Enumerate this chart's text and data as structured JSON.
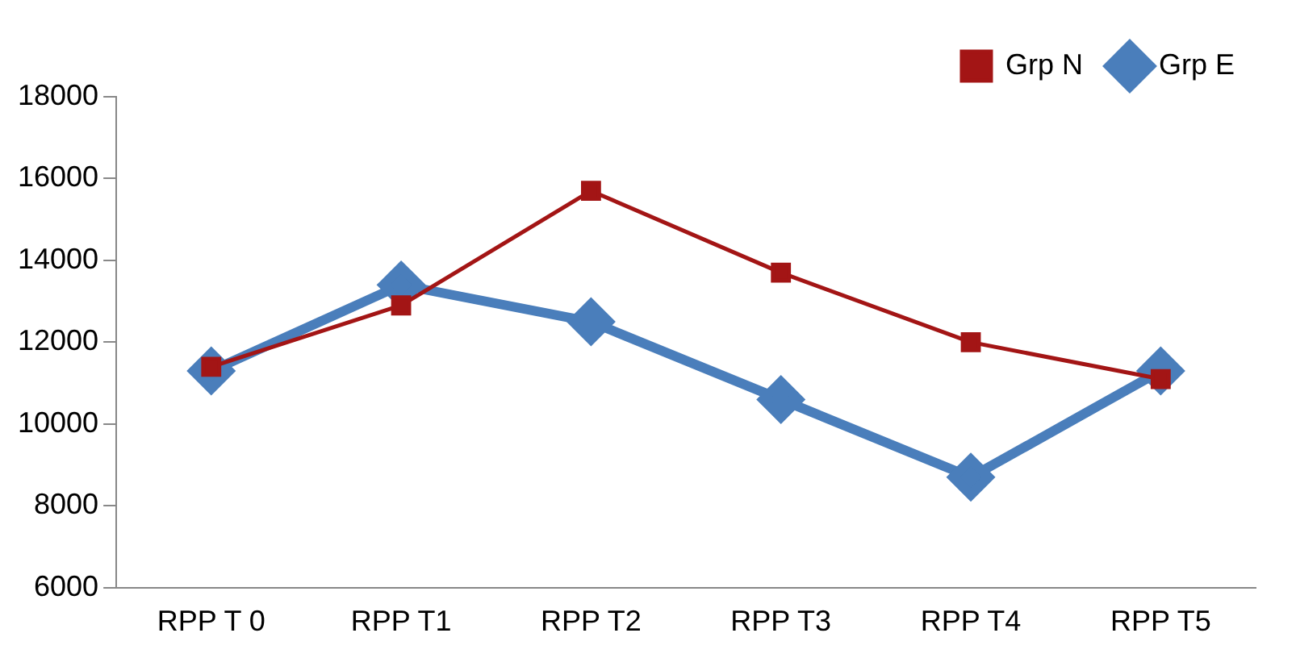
{
  "chart_data": {
    "type": "line",
    "categories": [
      "RPP T 0",
      "RPP T1",
      "RPP T2",
      "RPP T3",
      "RPP T4",
      "RPP T5"
    ],
    "series": [
      {
        "name": "Grp E",
        "color": "#4a7ebb",
        "values": [
          11300,
          13400,
          12500,
          10600,
          8700,
          11300
        ],
        "marker": "diamond"
      },
      {
        "name": "Grp N",
        "color": "#a31515",
        "values": [
          11400,
          12900,
          15700,
          13700,
          12000,
          11100
        ],
        "marker": "square"
      }
    ],
    "ylim": [
      6000,
      18000
    ],
    "yticks": [
      6000,
      8000,
      10000,
      12000,
      14000,
      16000,
      18000
    ],
    "grid": false,
    "legend": "top right",
    "line_style": "solid"
  }
}
